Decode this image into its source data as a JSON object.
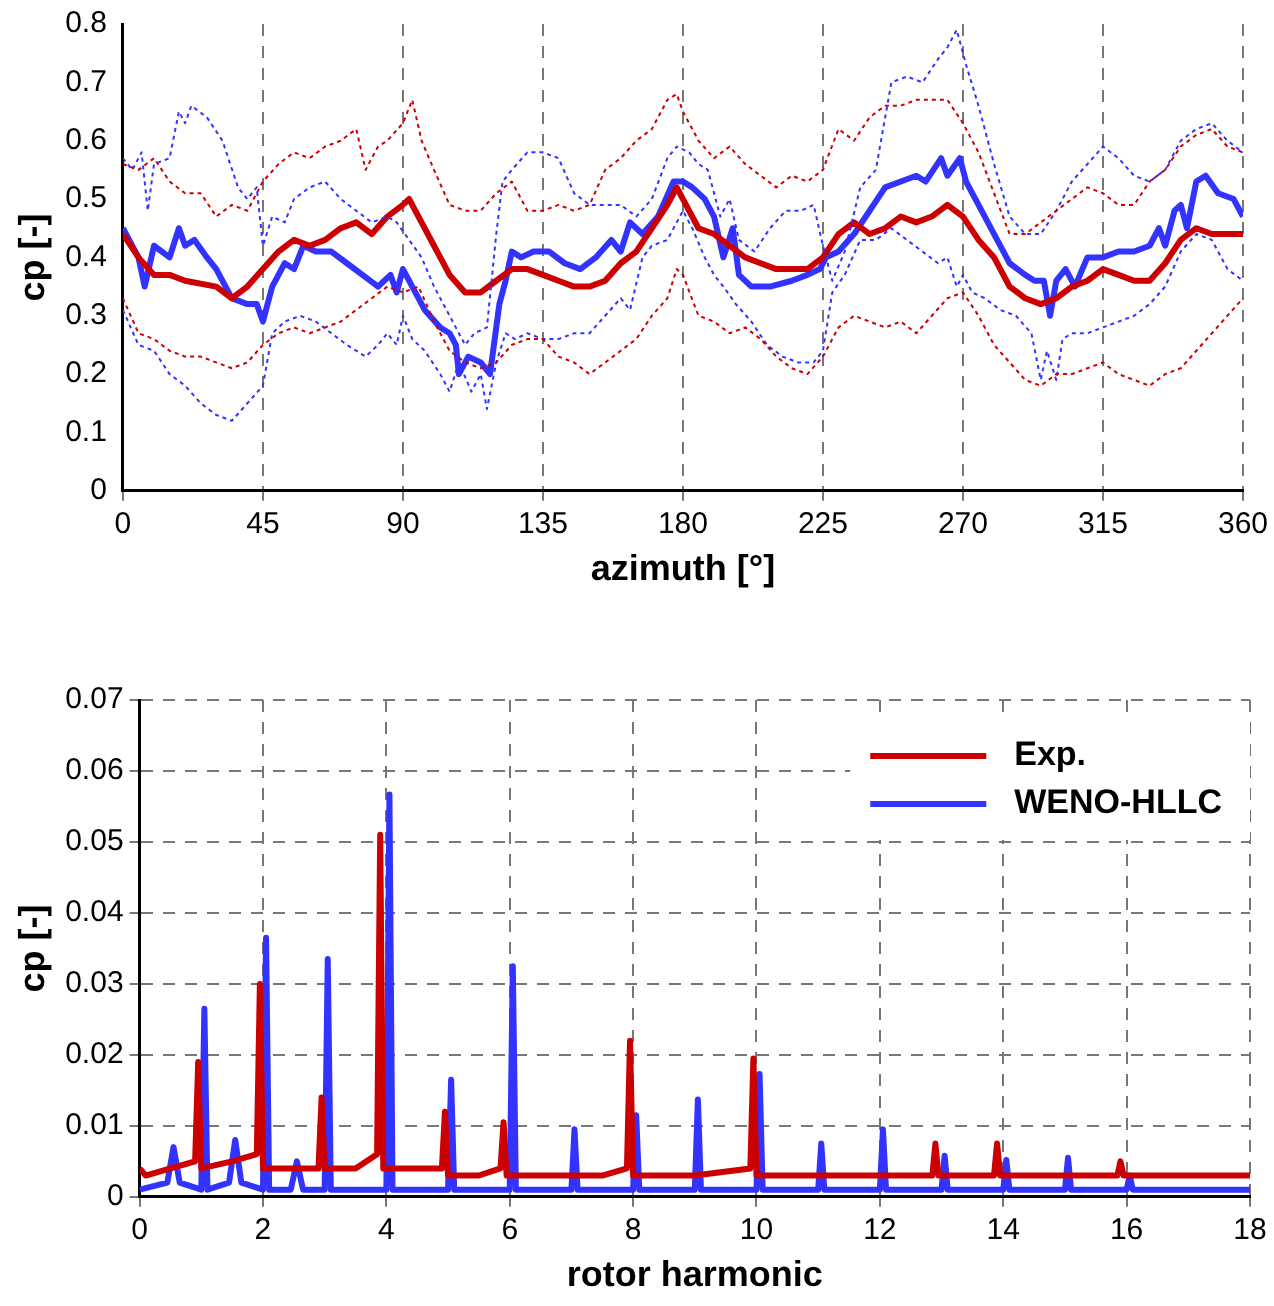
{
  "chart_data": [
    {
      "type": "line",
      "xlabel": "azimuth [°]",
      "ylabel": "cp [-]",
      "xlim": [
        0,
        360
      ],
      "xticks": [
        0,
        45,
        90,
        135,
        180,
        225,
        270,
        315,
        360
      ],
      "ylim": [
        0,
        0.8
      ],
      "yticks": [
        0,
        0.1,
        0.2,
        0.3,
        0.4,
        0.5,
        0.6,
        0.7,
        0.8
      ],
      "grid": "x",
      "legend": false,
      "marker": "none",
      "series": [
        {
          "color": "#cc0000",
          "line_style": "dotted",
          "x": [
            0,
            5,
            10,
            15,
            20,
            25,
            30,
            35,
            40,
            45,
            50,
            55,
            60,
            65,
            70,
            75,
            78,
            82,
            85,
            90,
            93,
            96,
            100,
            105,
            110,
            115,
            120,
            125,
            130,
            135,
            140,
            145,
            150,
            155,
            160,
            165,
            170,
            175,
            178,
            180,
            185,
            190,
            195,
            200,
            205,
            210,
            215,
            220,
            225,
            230,
            235,
            240,
            245,
            250,
            255,
            260,
            265,
            270,
            275,
            280,
            285,
            290,
            295,
            300,
            305,
            310,
            315,
            320,
            325,
            330,
            335,
            340,
            345,
            350,
            355,
            360
          ],
          "values": [
            0.56,
            0.55,
            0.57,
            0.53,
            0.51,
            0.51,
            0.47,
            0.49,
            0.48,
            0.53,
            0.56,
            0.58,
            0.57,
            0.59,
            0.6,
            0.62,
            0.55,
            0.59,
            0.6,
            0.63,
            0.67,
            0.6,
            0.55,
            0.49,
            0.48,
            0.48,
            0.51,
            0.53,
            0.48,
            0.48,
            0.49,
            0.48,
            0.49,
            0.55,
            0.57,
            0.6,
            0.62,
            0.67,
            0.68,
            0.65,
            0.6,
            0.57,
            0.59,
            0.56,
            0.54,
            0.52,
            0.54,
            0.53,
            0.55,
            0.62,
            0.6,
            0.64,
            0.66,
            0.66,
            0.67,
            0.67,
            0.67,
            0.63,
            0.58,
            0.51,
            0.44,
            0.44,
            0.46,
            0.48,
            0.5,
            0.52,
            0.51,
            0.49,
            0.49,
            0.53,
            0.55,
            0.59,
            0.61,
            0.62,
            0.59,
            0.58
          ]
        },
        {
          "color": "#cc0000",
          "line_style": "dotted",
          "x": [
            0,
            5,
            10,
            15,
            20,
            25,
            30,
            35,
            40,
            45,
            50,
            55,
            60,
            65,
            70,
            75,
            80,
            85,
            90,
            95,
            100,
            105,
            110,
            115,
            120,
            125,
            130,
            135,
            140,
            145,
            150,
            155,
            160,
            165,
            170,
            175,
            178,
            180,
            185,
            190,
            195,
            200,
            205,
            210,
            215,
            220,
            225,
            230,
            235,
            240,
            245,
            250,
            255,
            260,
            265,
            270,
            275,
            280,
            285,
            290,
            295,
            300,
            305,
            310,
            315,
            320,
            325,
            330,
            335,
            340,
            345,
            350,
            355,
            360
          ],
          "values": [
            0.33,
            0.27,
            0.26,
            0.24,
            0.23,
            0.23,
            0.22,
            0.21,
            0.22,
            0.25,
            0.27,
            0.28,
            0.27,
            0.28,
            0.29,
            0.31,
            0.33,
            0.35,
            0.34,
            0.35,
            0.29,
            0.24,
            0.22,
            0.21,
            0.22,
            0.25,
            0.26,
            0.26,
            0.23,
            0.22,
            0.2,
            0.22,
            0.24,
            0.26,
            0.3,
            0.33,
            0.38,
            0.37,
            0.3,
            0.29,
            0.27,
            0.28,
            0.26,
            0.23,
            0.21,
            0.2,
            0.23,
            0.28,
            0.3,
            0.29,
            0.28,
            0.29,
            0.27,
            0.3,
            0.33,
            0.34,
            0.3,
            0.25,
            0.22,
            0.19,
            0.18,
            0.2,
            0.2,
            0.21,
            0.22,
            0.2,
            0.19,
            0.18,
            0.2,
            0.21,
            0.24,
            0.27,
            0.3,
            0.33
          ]
        },
        {
          "color": "#3333ff",
          "line_style": "dotted",
          "x": [
            0,
            3,
            6,
            8,
            10,
            15,
            18,
            20,
            22,
            27,
            32,
            37,
            40,
            43,
            45,
            48,
            52,
            55,
            60,
            65,
            70,
            75,
            80,
            85,
            88,
            92,
            96,
            100,
            105,
            110,
            113,
            117,
            120,
            122,
            125,
            130,
            135,
            140,
            145,
            150,
            155,
            160,
            165,
            170,
            175,
            178,
            182,
            185,
            188,
            192,
            195,
            198,
            203,
            208,
            213,
            218,
            222,
            225,
            228,
            232,
            237,
            242,
            247,
            252,
            257,
            262,
            265,
            268,
            271,
            275,
            280,
            285,
            290,
            295,
            300,
            305,
            310,
            315,
            320,
            325,
            330,
            335,
            340,
            345,
            350,
            355,
            360
          ],
          "values": [
            0.57,
            0.55,
            0.58,
            0.48,
            0.56,
            0.57,
            0.65,
            0.63,
            0.66,
            0.64,
            0.6,
            0.52,
            0.5,
            0.52,
            0.42,
            0.47,
            0.46,
            0.5,
            0.52,
            0.53,
            0.5,
            0.48,
            0.46,
            0.47,
            0.46,
            0.43,
            0.4,
            0.35,
            0.3,
            0.25,
            0.27,
            0.28,
            0.44,
            0.53,
            0.55,
            0.58,
            0.58,
            0.57,
            0.51,
            0.49,
            0.49,
            0.49,
            0.47,
            0.5,
            0.57,
            0.59,
            0.58,
            0.56,
            0.55,
            0.47,
            0.5,
            0.43,
            0.41,
            0.45,
            0.48,
            0.48,
            0.49,
            0.42,
            0.36,
            0.41,
            0.52,
            0.55,
            0.7,
            0.71,
            0.7,
            0.74,
            0.76,
            0.79,
            0.73,
            0.66,
            0.56,
            0.47,
            0.44,
            0.44,
            0.48,
            0.53,
            0.56,
            0.59,
            0.57,
            0.54,
            0.53,
            0.55,
            0.6,
            0.62,
            0.63,
            0.6,
            0.58
          ]
        },
        {
          "color": "#3333ff",
          "line_style": "dotted",
          "x": [
            0,
            5,
            10,
            15,
            20,
            25,
            30,
            35,
            40,
            45,
            48,
            52,
            57,
            62,
            67,
            72,
            78,
            82,
            85,
            88,
            90,
            93,
            97,
            102,
            105,
            108,
            112,
            115,
            117,
            120,
            123,
            126,
            130,
            135,
            140,
            145,
            150,
            155,
            160,
            163,
            167,
            170,
            175,
            180,
            183,
            187,
            190,
            193,
            197,
            202,
            207,
            212,
            217,
            222,
            225,
            228,
            232,
            237,
            242,
            247,
            252,
            257,
            262,
            265,
            268,
            270,
            273,
            277,
            282,
            287,
            292,
            295,
            297,
            300,
            302,
            305,
            310,
            315,
            320,
            325,
            330,
            335,
            340,
            345,
            350,
            355,
            360
          ],
          "values": [
            0.31,
            0.25,
            0.24,
            0.2,
            0.18,
            0.15,
            0.13,
            0.12,
            0.15,
            0.18,
            0.27,
            0.29,
            0.3,
            0.29,
            0.27,
            0.25,
            0.23,
            0.25,
            0.27,
            0.25,
            0.3,
            0.26,
            0.24,
            0.2,
            0.17,
            0.22,
            0.17,
            0.2,
            0.14,
            0.22,
            0.27,
            0.26,
            0.27,
            0.26,
            0.26,
            0.27,
            0.27,
            0.3,
            0.33,
            0.31,
            0.4,
            0.42,
            0.43,
            0.48,
            0.45,
            0.4,
            0.37,
            0.35,
            0.32,
            0.29,
            0.25,
            0.23,
            0.22,
            0.22,
            0.24,
            0.34,
            0.37,
            0.43,
            0.43,
            0.45,
            0.43,
            0.41,
            0.39,
            0.4,
            0.35,
            0.37,
            0.34,
            0.33,
            0.31,
            0.3,
            0.27,
            0.19,
            0.24,
            0.19,
            0.26,
            0.27,
            0.27,
            0.28,
            0.29,
            0.3,
            0.32,
            0.35,
            0.41,
            0.44,
            0.43,
            0.38,
            0.36
          ]
        },
        {
          "color": "#cc0000",
          "line_style": "solid",
          "x": [
            0,
            5,
            10,
            15,
            20,
            30,
            35,
            40,
            45,
            50,
            55,
            60,
            65,
            70,
            75,
            80,
            85,
            90,
            92,
            95,
            100,
            105,
            110,
            115,
            120,
            125,
            130,
            135,
            140,
            145,
            150,
            155,
            160,
            165,
            170,
            175,
            178,
            180,
            185,
            190,
            195,
            200,
            205,
            210,
            215,
            220,
            225,
            230,
            235,
            240,
            245,
            250,
            255,
            260,
            265,
            270,
            275,
            280,
            285,
            290,
            295,
            300,
            305,
            310,
            315,
            320,
            325,
            330,
            335,
            340,
            345,
            350,
            355,
            360
          ],
          "values": [
            0.44,
            0.4,
            0.37,
            0.37,
            0.36,
            0.35,
            0.33,
            0.35,
            0.38,
            0.41,
            0.43,
            0.42,
            0.43,
            0.45,
            0.46,
            0.44,
            0.47,
            0.49,
            0.5,
            0.47,
            0.42,
            0.37,
            0.34,
            0.34,
            0.36,
            0.38,
            0.38,
            0.37,
            0.36,
            0.35,
            0.35,
            0.36,
            0.39,
            0.41,
            0.45,
            0.49,
            0.52,
            0.5,
            0.45,
            0.44,
            0.42,
            0.4,
            0.39,
            0.38,
            0.38,
            0.38,
            0.4,
            0.44,
            0.46,
            0.44,
            0.45,
            0.47,
            0.46,
            0.47,
            0.49,
            0.47,
            0.43,
            0.4,
            0.35,
            0.33,
            0.32,
            0.33,
            0.35,
            0.36,
            0.38,
            0.37,
            0.36,
            0.36,
            0.39,
            0.43,
            0.45,
            0.44,
            0.44,
            0.44
          ]
        },
        {
          "color": "#3333ff",
          "line_style": "solid",
          "x": [
            0,
            5,
            7,
            10,
            15,
            18,
            20,
            23,
            27,
            30,
            35,
            40,
            43,
            45,
            48,
            52,
            55,
            58,
            62,
            67,
            72,
            77,
            82,
            86,
            88,
            90,
            93,
            97,
            102,
            105,
            107,
            108,
            111,
            115,
            118,
            121,
            123,
            125,
            128,
            132,
            137,
            142,
            147,
            152,
            157,
            160,
            163,
            167,
            172,
            177,
            180,
            183,
            187,
            190,
            193,
            196,
            198,
            202,
            208,
            215,
            220,
            224,
            226,
            230,
            235,
            240,
            245,
            250,
            255,
            258,
            263,
            265,
            269,
            271,
            275,
            280,
            285,
            290,
            293,
            296,
            298,
            300,
            303,
            306,
            310,
            315,
            320,
            325,
            330,
            333,
            335,
            338,
            340,
            342,
            345,
            348,
            352,
            357,
            360
          ],
          "values": [
            0.45,
            0.4,
            0.35,
            0.42,
            0.4,
            0.45,
            0.42,
            0.43,
            0.4,
            0.38,
            0.33,
            0.32,
            0.32,
            0.29,
            0.35,
            0.39,
            0.38,
            0.42,
            0.41,
            0.41,
            0.39,
            0.37,
            0.35,
            0.37,
            0.34,
            0.38,
            0.35,
            0.31,
            0.28,
            0.27,
            0.25,
            0.2,
            0.23,
            0.22,
            0.2,
            0.32,
            0.36,
            0.41,
            0.4,
            0.41,
            0.41,
            0.39,
            0.38,
            0.4,
            0.43,
            0.41,
            0.46,
            0.44,
            0.47,
            0.53,
            0.53,
            0.52,
            0.5,
            0.47,
            0.4,
            0.45,
            0.37,
            0.35,
            0.35,
            0.36,
            0.37,
            0.38,
            0.4,
            0.41,
            0.44,
            0.48,
            0.52,
            0.53,
            0.54,
            0.53,
            0.57,
            0.54,
            0.57,
            0.53,
            0.49,
            0.44,
            0.39,
            0.37,
            0.36,
            0.36,
            0.3,
            0.36,
            0.38,
            0.35,
            0.4,
            0.4,
            0.41,
            0.41,
            0.42,
            0.45,
            0.42,
            0.48,
            0.49,
            0.45,
            0.53,
            0.54,
            0.51,
            0.5,
            0.47
          ]
        }
      ]
    },
    {
      "type": "line",
      "xlabel": "rotor harmonic",
      "ylabel": "cp [-]",
      "xlim": [
        0,
        18
      ],
      "xticks": [
        0,
        2,
        4,
        6,
        8,
        10,
        12,
        14,
        16,
        18
      ],
      "ylim": [
        0,
        0.07
      ],
      "yticks": [
        0,
        0.01,
        0.02,
        0.03,
        0.04,
        0.05,
        0.06,
        0.07
      ],
      "grid": true,
      "legend": "top right",
      "marker": "none",
      "series": [
        {
          "name": "Exp.",
          "color": "#cc0000",
          "line_style": "solid",
          "x": [
            0,
            0.1,
            0.5,
            0.9,
            0.95,
            1.0,
            1.5,
            1.9,
            1.95,
            2.0,
            2.5,
            2.9,
            2.95,
            3.0,
            3.5,
            3.85,
            3.9,
            3.95,
            4.5,
            4.9,
            4.95,
            5.0,
            5.5,
            5.85,
            5.9,
            5.95,
            6.5,
            7.5,
            7.9,
            7.95,
            8.0,
            9.0,
            9.9,
            9.95,
            10.0,
            11.0,
            12.0,
            12.85,
            12.9,
            12.95,
            13.85,
            13.9,
            13.95,
            15,
            15.85,
            15.9,
            15.95,
            17,
            18
          ],
          "values": [
            0.004,
            0.003,
            0.004,
            0.005,
            0.019,
            0.004,
            0.005,
            0.006,
            0.03,
            0.004,
            0.004,
            0.004,
            0.014,
            0.004,
            0.004,
            0.006,
            0.051,
            0.004,
            0.004,
            0.004,
            0.012,
            0.003,
            0.003,
            0.004,
            0.0105,
            0.003,
            0.003,
            0.003,
            0.004,
            0.022,
            0.003,
            0.003,
            0.004,
            0.0195,
            0.003,
            0.003,
            0.003,
            0.003,
            0.0075,
            0.003,
            0.003,
            0.0075,
            0.003,
            0.003,
            0.003,
            0.005,
            0.003,
            0.003,
            0.003
          ]
        },
        {
          "name": "WENO-HLLC",
          "color": "#3333ff",
          "line_style": "solid",
          "x": [
            0,
            0.45,
            0.55,
            0.65,
            1.0,
            1.05,
            1.1,
            1.45,
            1.55,
            1.65,
            2.0,
            2.05,
            2.1,
            2.45,
            2.55,
            2.65,
            3.0,
            3.05,
            3.1,
            4.0,
            4.05,
            4.1,
            5.0,
            5.05,
            5.1,
            6.0,
            6.05,
            6.1,
            7.0,
            7.05,
            7.1,
            8.0,
            8.05,
            8.1,
            9.0,
            9.05,
            9.1,
            10.0,
            10.05,
            10.1,
            11.0,
            11.05,
            11.1,
            12.0,
            12.05,
            12.1,
            13.0,
            13.05,
            13.1,
            14.0,
            14.05,
            14.1,
            15.0,
            15.05,
            15.1,
            16.0,
            16.05,
            16.1,
            18
          ],
          "values": [
            0.001,
            0.002,
            0.007,
            0.002,
            0.001,
            0.0265,
            0.001,
            0.002,
            0.008,
            0.002,
            0.001,
            0.0365,
            0.001,
            0.001,
            0.005,
            0.001,
            0.001,
            0.0335,
            0.001,
            0.001,
            0.0567,
            0.001,
            0.001,
            0.0165,
            0.001,
            0.001,
            0.0325,
            0.001,
            0.001,
            0.0095,
            0.001,
            0.001,
            0.0115,
            0.001,
            0.001,
            0.0137,
            0.001,
            0.001,
            0.0173,
            0.001,
            0.001,
            0.0075,
            0.001,
            0.001,
            0.0095,
            0.001,
            0.001,
            0.0058,
            0.001,
            0.001,
            0.0052,
            0.001,
            0.001,
            0.0055,
            0.001,
            0.001,
            0.003,
            0.001,
            0.001
          ]
        }
      ]
    }
  ]
}
